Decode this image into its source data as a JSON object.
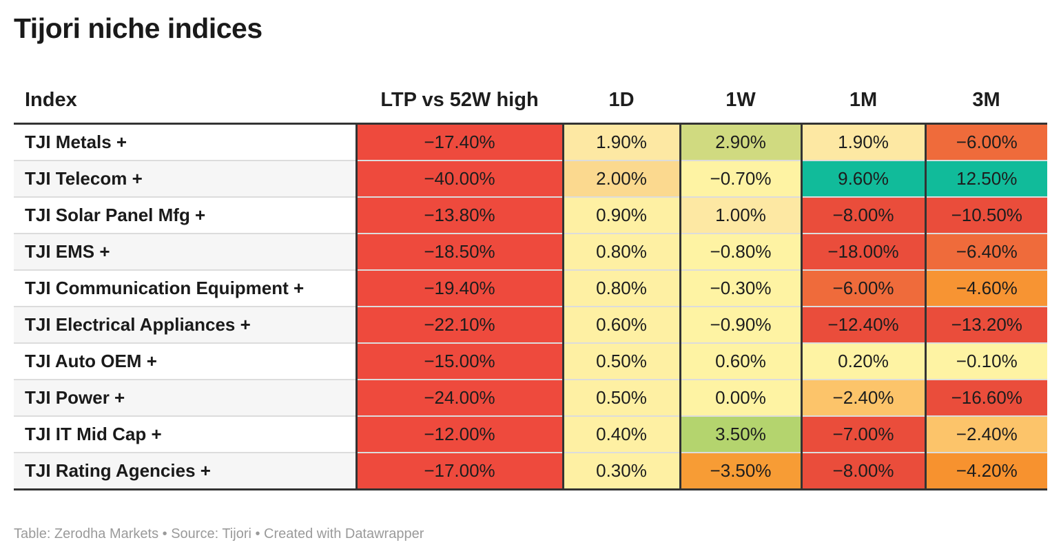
{
  "title": "Tijori niche indices",
  "footer": "Table: Zerodha Markets • Source: Tijori • Created with Datawrapper",
  "colors": {
    "deep_red": "#ee4a3d",
    "red": "#ea4d3b",
    "red_orange": "#ef6b3b",
    "orange": "#f79433",
    "light_orange": "#fcc46a",
    "pale_orange": "#fbd98f",
    "pale_yellow": "#fde8a3",
    "yellow": "#fef3a3",
    "light_green": "#d0da80",
    "green": "#b4d46e",
    "teal": "#11bb9a"
  },
  "chart_data": {
    "type": "table",
    "columns": [
      "Index",
      "LTP vs 52W high",
      "1D",
      "1W",
      "1M",
      "3M"
    ],
    "rows": [
      {
        "index": "TJI Metals +",
        "values": [
          "−17.40%",
          "1.90%",
          "2.90%",
          "1.90%",
          "−6.00%"
        ],
        "colors": [
          "#ee4a3d",
          "#fde8a3",
          "#d0da80",
          "#fde8a3",
          "#ef6b3b"
        ]
      },
      {
        "index": "TJI Telecom +",
        "values": [
          "−40.00%",
          "2.00%",
          "−0.70%",
          "9.60%",
          "12.50%"
        ],
        "colors": [
          "#ee4a3d",
          "#fbd98f",
          "#fef3a3",
          "#11bb9a",
          "#11bb9a"
        ]
      },
      {
        "index": "TJI Solar Panel Mfg +",
        "values": [
          "−13.80%",
          "0.90%",
          "1.00%",
          "−8.00%",
          "−10.50%"
        ],
        "colors": [
          "#ee4a3d",
          "#fef0a3",
          "#fde8a3",
          "#ea4d3b",
          "#ea4d3b"
        ]
      },
      {
        "index": "TJI EMS +",
        "values": [
          "−18.50%",
          "0.80%",
          "−0.80%",
          "−18.00%",
          "−6.40%"
        ],
        "colors": [
          "#ee4a3d",
          "#fef0a3",
          "#fef3a3",
          "#ea4d3b",
          "#ef6b3b"
        ]
      },
      {
        "index": "TJI Communication Equipment +",
        "values": [
          "−19.40%",
          "0.80%",
          "−0.30%",
          "−6.00%",
          "−4.60%"
        ],
        "colors": [
          "#ee4a3d",
          "#fef0a3",
          "#fef3a3",
          "#ef6b3b",
          "#f79433"
        ]
      },
      {
        "index": "TJI Electrical Appliances +",
        "values": [
          "−22.10%",
          "0.60%",
          "−0.90%",
          "−12.40%",
          "−13.20%"
        ],
        "colors": [
          "#ee4a3d",
          "#fef0a3",
          "#fef3a3",
          "#ea4d3b",
          "#ea4d3b"
        ]
      },
      {
        "index": "TJI Auto OEM +",
        "values": [
          "−15.00%",
          "0.50%",
          "0.60%",
          "0.20%",
          "−0.10%"
        ],
        "colors": [
          "#ee4a3d",
          "#fef0a3",
          "#fef3a3",
          "#fef3a3",
          "#fef3a3"
        ]
      },
      {
        "index": "TJI Power +",
        "values": [
          "−24.00%",
          "0.50%",
          "0.00%",
          "−2.40%",
          "−16.60%"
        ],
        "colors": [
          "#ee4a3d",
          "#fef0a3",
          "#fef3a3",
          "#fcc46a",
          "#ea4d3b"
        ]
      },
      {
        "index": "TJI IT Mid Cap +",
        "values": [
          "−12.00%",
          "0.40%",
          "3.50%",
          "−7.00%",
          "−2.40%"
        ],
        "colors": [
          "#ee4a3d",
          "#fef0a3",
          "#b4d46e",
          "#ea4d3b",
          "#fcc46a"
        ]
      },
      {
        "index": "TJI Rating Agencies +",
        "values": [
          "−17.00%",
          "0.30%",
          "−3.50%",
          "−8.00%",
          "−4.20%"
        ],
        "colors": [
          "#ee4a3d",
          "#fef0a3",
          "#f79c35",
          "#ea4d3b",
          "#f7922f"
        ]
      }
    ]
  }
}
